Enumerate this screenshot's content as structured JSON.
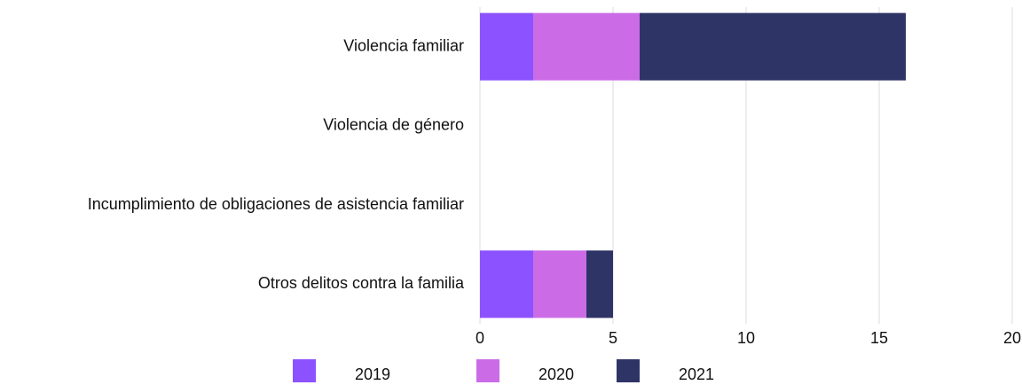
{
  "chart_data": {
    "type": "stacked-bar-horizontal",
    "categories": [
      "Violencia familiar",
      "Violencia de género",
      "Incumplimiento de obligaciones de asistencia familiar",
      "Otros delitos contra la familia"
    ],
    "series": [
      {
        "name": "2019",
        "color": "#8c52ff",
        "values": [
          2,
          0,
          0,
          2
        ]
      },
      {
        "name": "2020",
        "color": "#cb6ce6",
        "values": [
          4,
          0,
          0,
          2
        ]
      },
      {
        "name": "2021",
        "color": "#2e3466",
        "values": [
          10,
          0,
          0,
          1
        ]
      }
    ],
    "xlim": [
      0,
      20
    ],
    "xticks": [
      0,
      5,
      10,
      15,
      20
    ],
    "grid": true,
    "legend": "bottom"
  }
}
